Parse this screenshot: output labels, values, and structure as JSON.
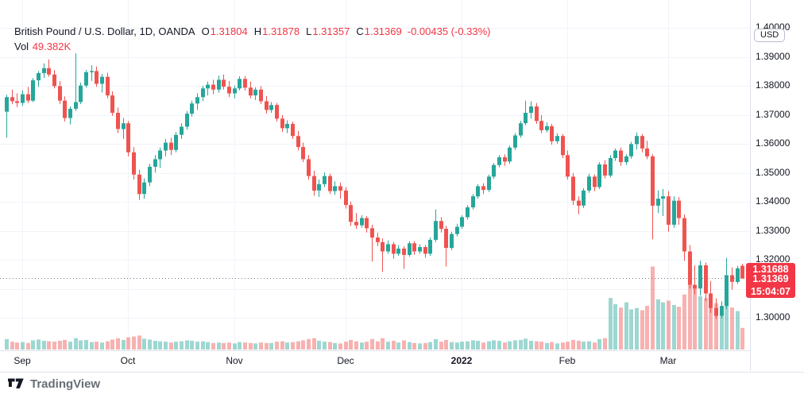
{
  "legend": {
    "title": "British Pound / U.S. Dollar, 1D, OANDA",
    "open_key": "O",
    "open": "1.31804",
    "high_key": "H",
    "high": "1.31878",
    "low_key": "L",
    "low": "1.31357",
    "close_key": "C",
    "close": "1.31369",
    "change": "-0.00435 (-0.33%)",
    "volume_key": "Vol",
    "volume": "49.382K"
  },
  "price_scale": {
    "currency_label": "USD"
  },
  "branding": {
    "name": "TradingView"
  },
  "colors": {
    "up": "#26a69a",
    "down": "#ef5350",
    "vol_opacity": 0.45,
    "badge": "#f23645",
    "grid": "#f0f3fa",
    "price_line": "#787b86",
    "axis_text": "#131722",
    "value_down": "#f23645"
  },
  "chart_data": {
    "type": "candlestick",
    "symbol": "British Pound / U.S. Dollar",
    "interval": "1D",
    "exchange": "OANDA",
    "ohlc": {
      "open": 1.31804,
      "high": 1.31878,
      "low": 1.31357,
      "close": 1.31369,
      "change": -0.00435,
      "change_pct": -0.33,
      "volume_k": 49.382
    },
    "price_ticks": [
      1.4,
      1.39,
      1.38,
      1.37,
      1.36,
      1.35,
      1.34,
      1.33,
      1.32,
      1.31,
      1.3
    ],
    "time_ticks": [
      {
        "label": "Sep",
        "index": 3
      },
      {
        "label": "Oct",
        "index": 23
      },
      {
        "label": "Nov",
        "index": 43
      },
      {
        "label": "Dec",
        "index": 64
      },
      {
        "label": "2022",
        "index": 86,
        "emphasis": true
      },
      {
        "label": "Feb",
        "index": 106
      },
      {
        "label": "Mar",
        "index": 125
      }
    ],
    "y_range": [
      1.2889,
      1.4097
    ],
    "x_start": 8,
    "x_step": 6.665,
    "vol_axis_max": 200,
    "vol_pane_height": 110,
    "price_line_value": 1.31369,
    "secondary_price": 1.31688,
    "secondary_price_label": "1.31688",
    "last_price": 1.31369,
    "last_price_label": "1.31369",
    "countdown": "15:04:07",
    "candles": [
      [
        1.3712,
        1.377,
        1.3622,
        1.3762,
        24
      ],
      [
        1.3762,
        1.3788,
        1.3738,
        1.3748,
        18
      ],
      [
        1.3748,
        1.3775,
        1.3728,
        1.3742,
        16
      ],
      [
        1.3742,
        1.3785,
        1.3732,
        1.3772,
        17
      ],
      [
        1.3772,
        1.3798,
        1.3742,
        1.375,
        15
      ],
      [
        1.375,
        1.3828,
        1.3745,
        1.382,
        21
      ],
      [
        1.382,
        1.3852,
        1.3798,
        1.3845,
        23
      ],
      [
        1.3845,
        1.3878,
        1.3828,
        1.3862,
        20
      ],
      [
        1.3862,
        1.3892,
        1.3832,
        1.384,
        19
      ],
      [
        1.384,
        1.3855,
        1.3792,
        1.38,
        18
      ],
      [
        1.38,
        1.3818,
        1.3738,
        1.375,
        20
      ],
      [
        1.375,
        1.3765,
        1.3678,
        1.369,
        22
      ],
      [
        1.369,
        1.373,
        1.3668,
        1.3722,
        18
      ],
      [
        1.3722,
        1.3913,
        1.3715,
        1.3745,
        26
      ],
      [
        1.3745,
        1.3812,
        1.3738,
        1.3802,
        21
      ],
      [
        1.3802,
        1.3856,
        1.3795,
        1.3848,
        22
      ],
      [
        1.3848,
        1.3872,
        1.3818,
        1.3852,
        17
      ],
      [
        1.3852,
        1.3868,
        1.3798,
        1.3808,
        18
      ],
      [
        1.3808,
        1.3842,
        1.3778,
        1.3832,
        16
      ],
      [
        1.3832,
        1.3846,
        1.3758,
        1.3768,
        19
      ],
      [
        1.3768,
        1.3782,
        1.3698,
        1.3708,
        23
      ],
      [
        1.3708,
        1.3726,
        1.3638,
        1.3652,
        26
      ],
      [
        1.3652,
        1.369,
        1.3618,
        1.3672,
        22
      ],
      [
        1.3672,
        1.368,
        1.3558,
        1.3572,
        28
      ],
      [
        1.3572,
        1.359,
        1.3478,
        1.3495,
        30
      ],
      [
        1.3495,
        1.3512,
        1.3408,
        1.3428,
        32
      ],
      [
        1.3428,
        1.3482,
        1.3412,
        1.3468,
        25
      ],
      [
        1.3468,
        1.3532,
        1.3455,
        1.3522,
        23
      ],
      [
        1.3522,
        1.3562,
        1.3502,
        1.3548,
        20
      ],
      [
        1.3548,
        1.3588,
        1.3518,
        1.3578,
        19
      ],
      [
        1.3578,
        1.3618,
        1.3558,
        1.3605,
        18
      ],
      [
        1.3605,
        1.3622,
        1.3562,
        1.358,
        16
      ],
      [
        1.358,
        1.3642,
        1.3572,
        1.3632,
        18
      ],
      [
        1.3632,
        1.3672,
        1.3618,
        1.366,
        19
      ],
      [
        1.366,
        1.3714,
        1.365,
        1.3705,
        21
      ],
      [
        1.3705,
        1.375,
        1.3695,
        1.374,
        20
      ],
      [
        1.374,
        1.3776,
        1.3718,
        1.3762,
        18
      ],
      [
        1.3762,
        1.3802,
        1.3748,
        1.3792,
        19
      ],
      [
        1.3792,
        1.3816,
        1.3768,
        1.3805,
        17
      ],
      [
        1.3805,
        1.3822,
        1.3772,
        1.3788,
        15
      ],
      [
        1.3788,
        1.3836,
        1.3778,
        1.3822,
        16
      ],
      [
        1.3822,
        1.384,
        1.3788,
        1.3798,
        15
      ],
      [
        1.3798,
        1.3818,
        1.3762,
        1.3775,
        16
      ],
      [
        1.3775,
        1.3802,
        1.3758,
        1.3792,
        14
      ],
      [
        1.3792,
        1.3834,
        1.3785,
        1.3825,
        17
      ],
      [
        1.3825,
        1.3835,
        1.3785,
        1.3795,
        16
      ],
      [
        1.3795,
        1.3816,
        1.3758,
        1.3768,
        15
      ],
      [
        1.3768,
        1.3796,
        1.3752,
        1.3788,
        14
      ],
      [
        1.3788,
        1.38,
        1.3738,
        1.3748,
        16
      ],
      [
        1.3748,
        1.3766,
        1.3705,
        1.3718,
        15
      ],
      [
        1.3718,
        1.3745,
        1.3708,
        1.3735,
        15
      ],
      [
        1.3735,
        1.3742,
        1.3678,
        1.3688,
        18
      ],
      [
        1.3688,
        1.37,
        1.3642,
        1.3655,
        19
      ],
      [
        1.3655,
        1.3682,
        1.3638,
        1.367,
        16
      ],
      [
        1.367,
        1.3678,
        1.3618,
        1.3628,
        17
      ],
      [
        1.3628,
        1.3645,
        1.3578,
        1.359,
        19
      ],
      [
        1.359,
        1.3605,
        1.3538,
        1.3548,
        21
      ],
      [
        1.3548,
        1.3562,
        1.3478,
        1.349,
        24
      ],
      [
        1.349,
        1.3508,
        1.3422,
        1.344,
        26
      ],
      [
        1.344,
        1.3478,
        1.3418,
        1.3462,
        20
      ],
      [
        1.3462,
        1.3502,
        1.3452,
        1.349,
        18
      ],
      [
        1.349,
        1.3498,
        1.3428,
        1.3438,
        17
      ],
      [
        1.3438,
        1.3472,
        1.3425,
        1.3455,
        15
      ],
      [
        1.3455,
        1.3468,
        1.3412,
        1.344,
        14
      ],
      [
        1.344,
        1.3452,
        1.3378,
        1.339,
        18
      ],
      [
        1.339,
        1.3402,
        1.3318,
        1.3332,
        22
      ],
      [
        1.3332,
        1.3362,
        1.3308,
        1.332,
        19
      ],
      [
        1.332,
        1.3355,
        1.3312,
        1.3345,
        16
      ],
      [
        1.3345,
        1.3352,
        1.3295,
        1.331,
        18
      ],
      [
        1.331,
        1.3322,
        1.3195,
        1.3278,
        24
      ],
      [
        1.3278,
        1.3295,
        1.3248,
        1.3262,
        19
      ],
      [
        1.3262,
        1.3275,
        1.316,
        1.323,
        26
      ],
      [
        1.323,
        1.3268,
        1.3222,
        1.3255,
        18
      ],
      [
        1.3255,
        1.3262,
        1.3205,
        1.3222,
        20
      ],
      [
        1.3222,
        1.3252,
        1.3215,
        1.324,
        16
      ],
      [
        1.324,
        1.3248,
        1.317,
        1.3218,
        21
      ],
      [
        1.3218,
        1.3265,
        1.3212,
        1.3258,
        17
      ],
      [
        1.3258,
        1.3266,
        1.3218,
        1.323,
        15
      ],
      [
        1.323,
        1.3255,
        1.3222,
        1.3245,
        14
      ],
      [
        1.3245,
        1.3252,
        1.3208,
        1.3222,
        15
      ],
      [
        1.3222,
        1.3278,
        1.3215,
        1.327,
        17
      ],
      [
        1.327,
        1.3375,
        1.3262,
        1.3335,
        24
      ],
      [
        1.3335,
        1.3348,
        1.3295,
        1.3308,
        18
      ],
      [
        1.3308,
        1.3318,
        1.3178,
        1.3242,
        22
      ],
      [
        1.3242,
        1.3298,
        1.3235,
        1.329,
        17
      ],
      [
        1.329,
        1.3325,
        1.3282,
        1.3315,
        16
      ],
      [
        1.3315,
        1.3355,
        1.3308,
        1.3348,
        18
      ],
      [
        1.3348,
        1.339,
        1.334,
        1.3382,
        19
      ],
      [
        1.3382,
        1.3428,
        1.3375,
        1.342,
        21
      ],
      [
        1.342,
        1.3462,
        1.3412,
        1.3455,
        20
      ],
      [
        1.3455,
        1.3465,
        1.3428,
        1.3442,
        16
      ],
      [
        1.3442,
        1.3495,
        1.3435,
        1.3488,
        19
      ],
      [
        1.3488,
        1.3535,
        1.348,
        1.3528,
        21
      ],
      [
        1.3528,
        1.3562,
        1.352,
        1.3555,
        20
      ],
      [
        1.3555,
        1.3565,
        1.3525,
        1.354,
        16
      ],
      [
        1.354,
        1.3595,
        1.3532,
        1.3588,
        19
      ],
      [
        1.3588,
        1.3638,
        1.358,
        1.363,
        21
      ],
      [
        1.363,
        1.368,
        1.3622,
        1.3672,
        22
      ],
      [
        1.3672,
        1.375,
        1.3665,
        1.3708,
        25
      ],
      [
        1.3708,
        1.3748,
        1.3688,
        1.373,
        20
      ],
      [
        1.373,
        1.3742,
        1.367,
        1.368,
        19
      ],
      [
        1.368,
        1.37,
        1.3638,
        1.3648,
        18
      ],
      [
        1.3648,
        1.3675,
        1.364,
        1.3662,
        15
      ],
      [
        1.3662,
        1.367,
        1.3598,
        1.361,
        17
      ],
      [
        1.361,
        1.3638,
        1.3602,
        1.3628,
        14
      ],
      [
        1.3628,
        1.3635,
        1.3552,
        1.3562,
        16
      ],
      [
        1.3562,
        1.3578,
        1.3478,
        1.3488,
        18
      ],
      [
        1.3488,
        1.35,
        1.339,
        1.3405,
        22
      ],
      [
        1.3405,
        1.342,
        1.3358,
        1.3388,
        20
      ],
      [
        1.3388,
        1.3448,
        1.338,
        1.344,
        18
      ],
      [
        1.344,
        1.3498,
        1.3432,
        1.3488,
        19
      ],
      [
        1.3488,
        1.3495,
        1.3438,
        1.3452,
        16
      ],
      [
        1.3452,
        1.3538,
        1.3445,
        1.353,
        24
      ],
      [
        1.353,
        1.3545,
        1.3482,
        1.3492,
        26
      ],
      [
        1.3492,
        1.3562,
        1.3485,
        1.3552,
        118
      ],
      [
        1.3552,
        1.3585,
        1.3542,
        1.3578,
        104
      ],
      [
        1.3578,
        1.3588,
        1.3525,
        1.3538,
        96
      ],
      [
        1.3538,
        1.3565,
        1.3528,
        1.3558,
        108
      ],
      [
        1.3558,
        1.3608,
        1.355,
        1.36,
        92
      ],
      [
        1.36,
        1.364,
        1.3582,
        1.3628,
        95
      ],
      [
        1.3628,
        1.3635,
        1.3572,
        1.3585,
        90
      ],
      [
        1.3585,
        1.3612,
        1.3548,
        1.3558,
        100
      ],
      [
        1.3558,
        1.3565,
        1.3272,
        1.3388,
        190
      ],
      [
        1.3388,
        1.344,
        1.3362,
        1.3412,
        115
      ],
      [
        1.3412,
        1.3445,
        1.3352,
        1.342,
        108
      ],
      [
        1.342,
        1.3438,
        1.3298,
        1.3322,
        112
      ],
      [
        1.3322,
        1.342,
        1.3312,
        1.3405,
        102
      ],
      [
        1.3405,
        1.3418,
        1.3322,
        1.3345,
        98
      ],
      [
        1.3345,
        1.3358,
        1.3198,
        1.323,
        126
      ],
      [
        1.323,
        1.3252,
        1.3102,
        1.3115,
        162
      ],
      [
        1.3115,
        1.3182,
        1.3082,
        1.3102,
        140
      ],
      [
        1.3102,
        1.3198,
        1.3078,
        1.3182,
        122
      ],
      [
        1.3182,
        1.3192,
        1.3058,
        1.3085,
        118
      ],
      [
        1.3085,
        1.3128,
        1.3018,
        1.3035,
        112
      ],
      [
        1.3035,
        1.3068,
        1.2998,
        1.3008,
        106
      ],
      [
        1.3008,
        1.3058,
        1.3,
        1.3042,
        98
      ],
      [
        1.3042,
        1.3208,
        1.3032,
        1.3148,
        132
      ],
      [
        1.3148,
        1.3175,
        1.3098,
        1.3125,
        96
      ],
      [
        1.3125,
        1.318,
        1.3118,
        1.3172,
        88
      ],
      [
        1.31804,
        1.31878,
        1.31357,
        1.31369,
        49.382
      ]
    ]
  }
}
